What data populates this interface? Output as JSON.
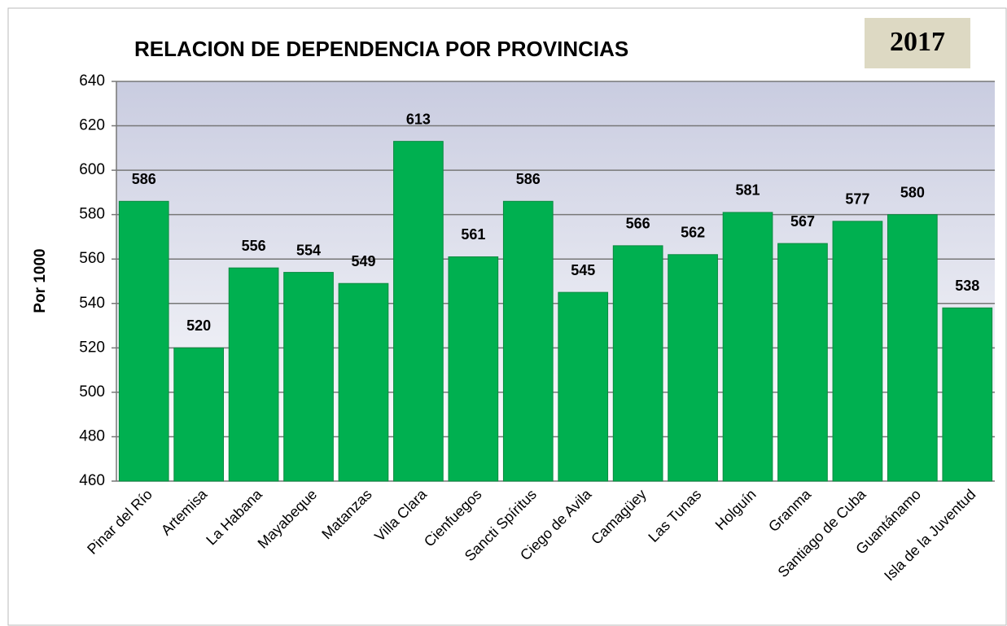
{
  "chart_data": {
    "type": "bar",
    "title": "RELACION DE DEPENDENCIA POR PROVINCIAS",
    "badge": "2017",
    "ylabel": "Por 1000",
    "categories": [
      "Pinar del Río",
      "Artemisa",
      "La Habana",
      "Mayabeque",
      "Matanzas",
      "Villa Clara",
      "Cienfuegos",
      "Sancti Spíritus",
      "Ciego de Avila",
      "Camagüey",
      "Las Tunas",
      "Holguín",
      "Granma",
      "Santiago de Cuba",
      "Guantánamo",
      "Isla de la Juventud"
    ],
    "values": [
      586,
      520,
      556,
      554,
      549,
      613,
      561,
      586,
      545,
      566,
      562,
      581,
      567,
      577,
      580,
      538
    ],
    "color": "#00b050",
    "ylim": [
      460,
      640
    ],
    "yticks": [
      460,
      480,
      500,
      520,
      540,
      560,
      580,
      600,
      620,
      640
    ],
    "grid": true
  }
}
